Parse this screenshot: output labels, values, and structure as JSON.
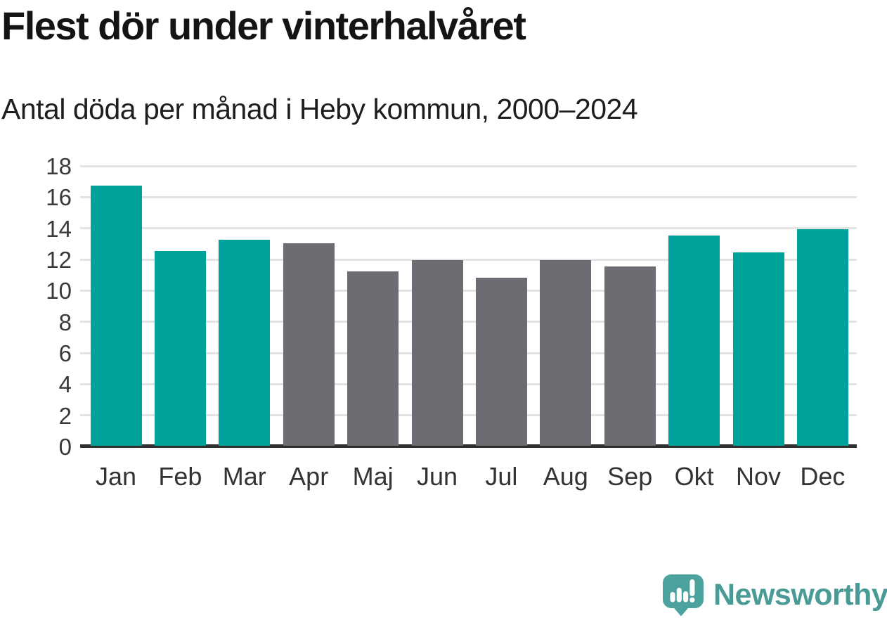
{
  "header": {
    "title": "Flest dör under vinterhalvåret",
    "subtitle": "Antal döda per månad i Heby kommun, 2000–2024"
  },
  "chart_data": {
    "type": "bar",
    "title": "Flest dör under vinterhalvåret",
    "subtitle": "Antal döda per månad i Heby kommun, 2000–2024",
    "categories": [
      "Jan",
      "Feb",
      "Mar",
      "Apr",
      "Maj",
      "Jun",
      "Jul",
      "Aug",
      "Sep",
      "Okt",
      "Nov",
      "Dec"
    ],
    "values": [
      16.7,
      12.5,
      13.2,
      13.0,
      11.2,
      11.9,
      10.8,
      11.9,
      11.5,
      13.5,
      12.4,
      13.9
    ],
    "bar_seasons": [
      "winter",
      "winter",
      "winter",
      "summer",
      "summer",
      "summer",
      "summer",
      "summer",
      "summer",
      "winter",
      "winter",
      "winter"
    ],
    "bar_palette": {
      "winter": "#00a39b",
      "summer": "#6d6c72"
    },
    "xlabel": "",
    "ylabel": "",
    "ylim": [
      0,
      18
    ],
    "ytick_step": 2,
    "yticks": [
      0,
      2,
      4,
      6,
      8,
      10,
      12,
      14,
      16,
      18
    ],
    "grid": true,
    "gridline_color": "#e3e3e3",
    "axis_line_color": "#2f2f2f",
    "legend": "none"
  },
  "footer": {
    "brand": "Newsworthy",
    "logo_icon": "newsworthy-speech-bubble-bar-chart-icon",
    "brand_color": "#4a9a96",
    "logo_fill": "#4ca39e"
  }
}
